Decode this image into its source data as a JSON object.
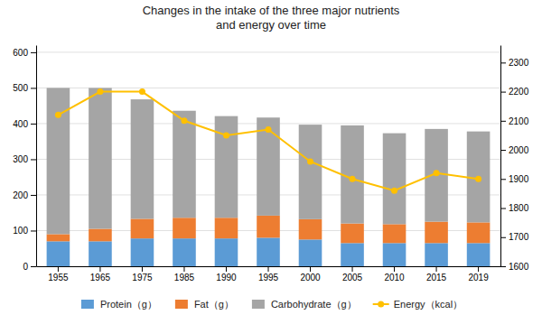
{
  "chart_data": {
    "type": "bar",
    "title": "Changes in the intake of the three major nutrients\nand energy over time",
    "categories": [
      "1955",
      "1965",
      "1975",
      "1985",
      "1990",
      "1995",
      "2000",
      "2005",
      "2010",
      "2015",
      "2019"
    ],
    "stacked": true,
    "grid": true,
    "legend": "bottom",
    "ylim": [
      0,
      620
    ],
    "yticks": [
      0,
      100,
      200,
      300,
      400,
      500,
      600
    ],
    "y2lim": [
      1600,
      2360
    ],
    "y2ticks": [
      1600,
      1700,
      1800,
      1900,
      2000,
      2100,
      2200,
      2300
    ],
    "series": [
      {
        "name": "Protein（g）",
        "color": "#5b9bd5",
        "values": [
          70,
          70,
          78,
          78,
          78,
          80,
          75,
          65,
          65,
          65,
          65
        ]
      },
      {
        "name": "Fat（g）",
        "color": "#ed7d31",
        "values": [
          20,
          35,
          55,
          58,
          58,
          62,
          57,
          55,
          53,
          60,
          58
        ]
      },
      {
        "name": "Carbohydrate（g）",
        "color": "#a5a5a5",
        "values": [
          410,
          395,
          335,
          300,
          285,
          275,
          265,
          275,
          255,
          260,
          255
        ]
      },
      {
        "name": "Energy（kcal）",
        "type": "line",
        "axis": "y2",
        "color": "#ffc000",
        "marker": "circle",
        "values": [
          2120,
          2200,
          2200,
          2100,
          2050,
          2070,
          1960,
          1900,
          1860,
          1920,
          1900
        ]
      }
    ]
  }
}
